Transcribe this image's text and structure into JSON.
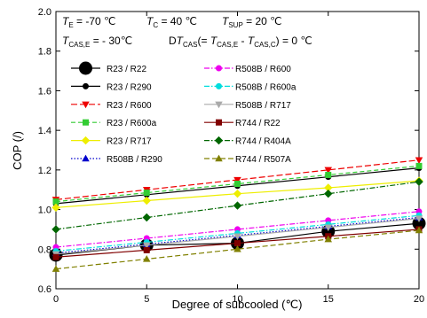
{
  "chart_data": {
    "type": "line",
    "xlabel": "Degree of subcooled (℃)",
    "ylabel": "COP (/)",
    "xlim": [
      0,
      20
    ],
    "ylim": [
      0.6,
      2.0
    ],
    "x_ticks": [
      0,
      5,
      10,
      15,
      20
    ],
    "y_ticks": [
      "0.6",
      "0.8",
      "1.0",
      "1.2",
      "1.4",
      "1.6",
      "1.8",
      "2.0"
    ],
    "grid": false,
    "legend_placement": "upper-left, two columns",
    "conditions": {
      "line1": {
        "te_var": "T",
        "te_sub": "E",
        "te_val": " = -70 ℃",
        "tc_var": "T",
        "tc_sub": "C",
        "tc_val": " = 40 ℃",
        "tsup_var": "T",
        "tsup_sub": "SUP",
        "tsup_val": " = 20 ℃"
      },
      "line2": {
        "cas_var": "T",
        "cas_sub": "CAS,E",
        "cas_val": " = - 30℃",
        "d_prefix": "D",
        "d_var": "T",
        "d_sub": "CAS",
        "d_mid1": "(= ",
        "d_var2": "T",
        "d_sub2": "CAS,E",
        "d_mid2": " - ",
        "d_var3": "T",
        "d_sub3": "CAS,C",
        "d_end": ") = 0 ℃"
      }
    },
    "x": [
      0,
      5,
      10,
      15,
      20
    ],
    "series": [
      {
        "name": "R23 / R22",
        "color": "#000000",
        "marker": "circle-big",
        "dash": "",
        "y": [
          0.77,
          0.82,
          0.83,
          0.89,
          0.93
        ]
      },
      {
        "name": "R23 / R290",
        "color": "#000000",
        "marker": "circle",
        "dash": "",
        "y": [
          1.03,
          1.075,
          1.12,
          1.165,
          1.21
        ]
      },
      {
        "name": "R23 / R600",
        "color": "#ee0000",
        "marker": "triangle-down",
        "dash": "7,3",
        "y": [
          1.05,
          1.1,
          1.15,
          1.2,
          1.25
        ]
      },
      {
        "name": "R23 / R600a",
        "color": "#33cc33",
        "marker": "square",
        "dash": "5,3",
        "y": [
          1.04,
          1.085,
          1.13,
          1.175,
          1.22
        ]
      },
      {
        "name": "R23 / R717",
        "color": "#eeee00",
        "marker": "diamond",
        "dash": "",
        "y": [
          1.01,
          1.045,
          1.08,
          1.11,
          1.145
        ]
      },
      {
        "name": "R508B / R290",
        "color": "#0000cc",
        "marker": "triangle-up",
        "dash": "1.5,2",
        "y": [
          0.78,
          0.825,
          0.87,
          0.915,
          0.96
        ]
      },
      {
        "name": "R508B / R600",
        "color": "#ee00ee",
        "marker": "circle",
        "dash": "6,2,1.5,2",
        "y": [
          0.81,
          0.855,
          0.9,
          0.945,
          0.99
        ]
      },
      {
        "name": "R508B / R600a",
        "color": "#00dddd",
        "marker": "circle",
        "dash": "6,2,1.5,2",
        "y": [
          0.79,
          0.835,
          0.88,
          0.925,
          0.97
        ]
      },
      {
        "name": "R508B / R717",
        "color": "#aaaaaa",
        "marker": "triangle-down",
        "dash": "",
        "y": [
          0.775,
          0.82,
          0.865,
          0.91,
          0.955
        ]
      },
      {
        "name": "R744 / R22",
        "color": "#800000",
        "marker": "square",
        "dash": "",
        "y": [
          0.76,
          0.795,
          0.83,
          0.865,
          0.9
        ]
      },
      {
        "name": "R744 / R404A",
        "color": "#006600",
        "marker": "diamond",
        "dash": "6,2,1.5,2",
        "y": [
          0.9,
          0.96,
          1.02,
          1.08,
          1.14
        ]
      },
      {
        "name": "R744 / R507A",
        "color": "#808000",
        "marker": "triangle-up",
        "dash": "6,3",
        "y": [
          0.7,
          0.75,
          0.8,
          0.85,
          0.895
        ]
      }
    ]
  }
}
